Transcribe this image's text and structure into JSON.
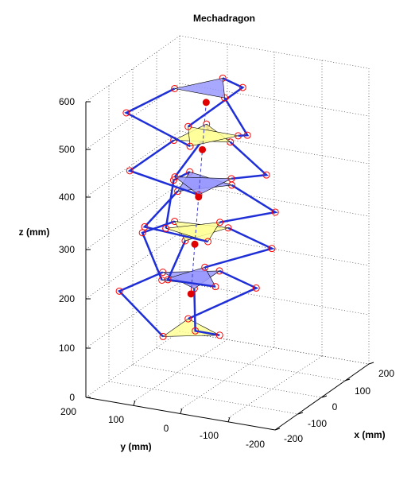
{
  "chart_data": {
    "type": "3d-line",
    "title": "Mechadragon",
    "xlabel": "x (mm)",
    "ylabel": "y (mm)",
    "zlabel": "z (mm)",
    "xlim": [
      -200,
      200
    ],
    "ylim": [
      -200,
      200
    ],
    "zlim": [
      0,
      600
    ],
    "xticks": [
      "-200",
      "-100",
      "0",
      "100",
      "200"
    ],
    "yticks": [
      "200",
      "100",
      "0",
      "-100",
      "-200"
    ],
    "zticks": [
      "0",
      "100",
      "200",
      "300",
      "400",
      "500",
      "600"
    ],
    "grid": true,
    "platform_colors": {
      "yellow": "#ffff99",
      "blue": "#9999ff"
    },
    "link_color": "#1f2fd8",
    "joint_marker_color": "#ff0000",
    "center_marker_color": "#e00000",
    "modules": [
      {
        "z_bottom": 0,
        "z_top": 110
      },
      {
        "z_bottom": 110,
        "z_top": 210
      },
      {
        "z_bottom": 210,
        "z_top": 310
      },
      {
        "z_bottom": 310,
        "z_top": 410
      },
      {
        "z_bottom": 410,
        "z_top": 510
      }
    ]
  }
}
